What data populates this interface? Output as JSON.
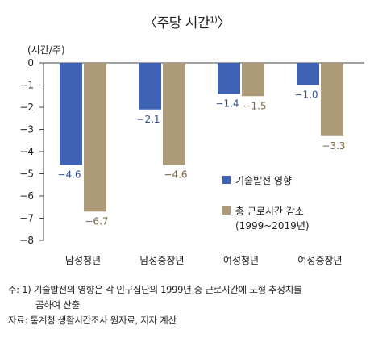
{
  "chart_data": {
    "type": "bar",
    "title_open": "〈",
    "title_text": "주당 시간",
    "title_sup": "1)",
    "title_close": "〉",
    "ylabel": "(시간/주)",
    "ylim": [
      -8,
      0
    ],
    "yticks": [
      0,
      -1,
      -2,
      -3,
      -4,
      -5,
      -6,
      -7,
      -8
    ],
    "ytick_labels": [
      "0",
      "−1",
      "−2",
      "−3",
      "−4",
      "−5",
      "−6",
      "−7",
      "−8"
    ],
    "categories": [
      "남성청년",
      "남성중장년",
      "여성청년",
      "여성중장년"
    ],
    "series": [
      {
        "name": "기술발전 영향",
        "color": "#3f63b4",
        "values": [
          -4.6,
          -2.1,
          -1.4,
          -1.0
        ],
        "labels": [
          "−4.6",
          "−2.1",
          "−1.4",
          "−1.0"
        ]
      },
      {
        "name": "총 근로시간 감소",
        "name_line2": "(1999~2019년)",
        "color": "#ad9a78",
        "values": [
          -6.7,
          -4.6,
          -1.5,
          -3.3
        ],
        "labels": [
          "−6.7",
          "−4.6",
          "−1.5",
          "−3.3"
        ]
      }
    ],
    "grid": false,
    "legend_position": "right"
  },
  "notes": {
    "line1": "주: 1) 기술발전의 영향은 각 인구집단의 1999년 중 근로시간에 모형 추정치를",
    "line2": "곱하여 산출",
    "line3": "자료: 통계청 생활시간조사 원자료, 저자 계산"
  }
}
